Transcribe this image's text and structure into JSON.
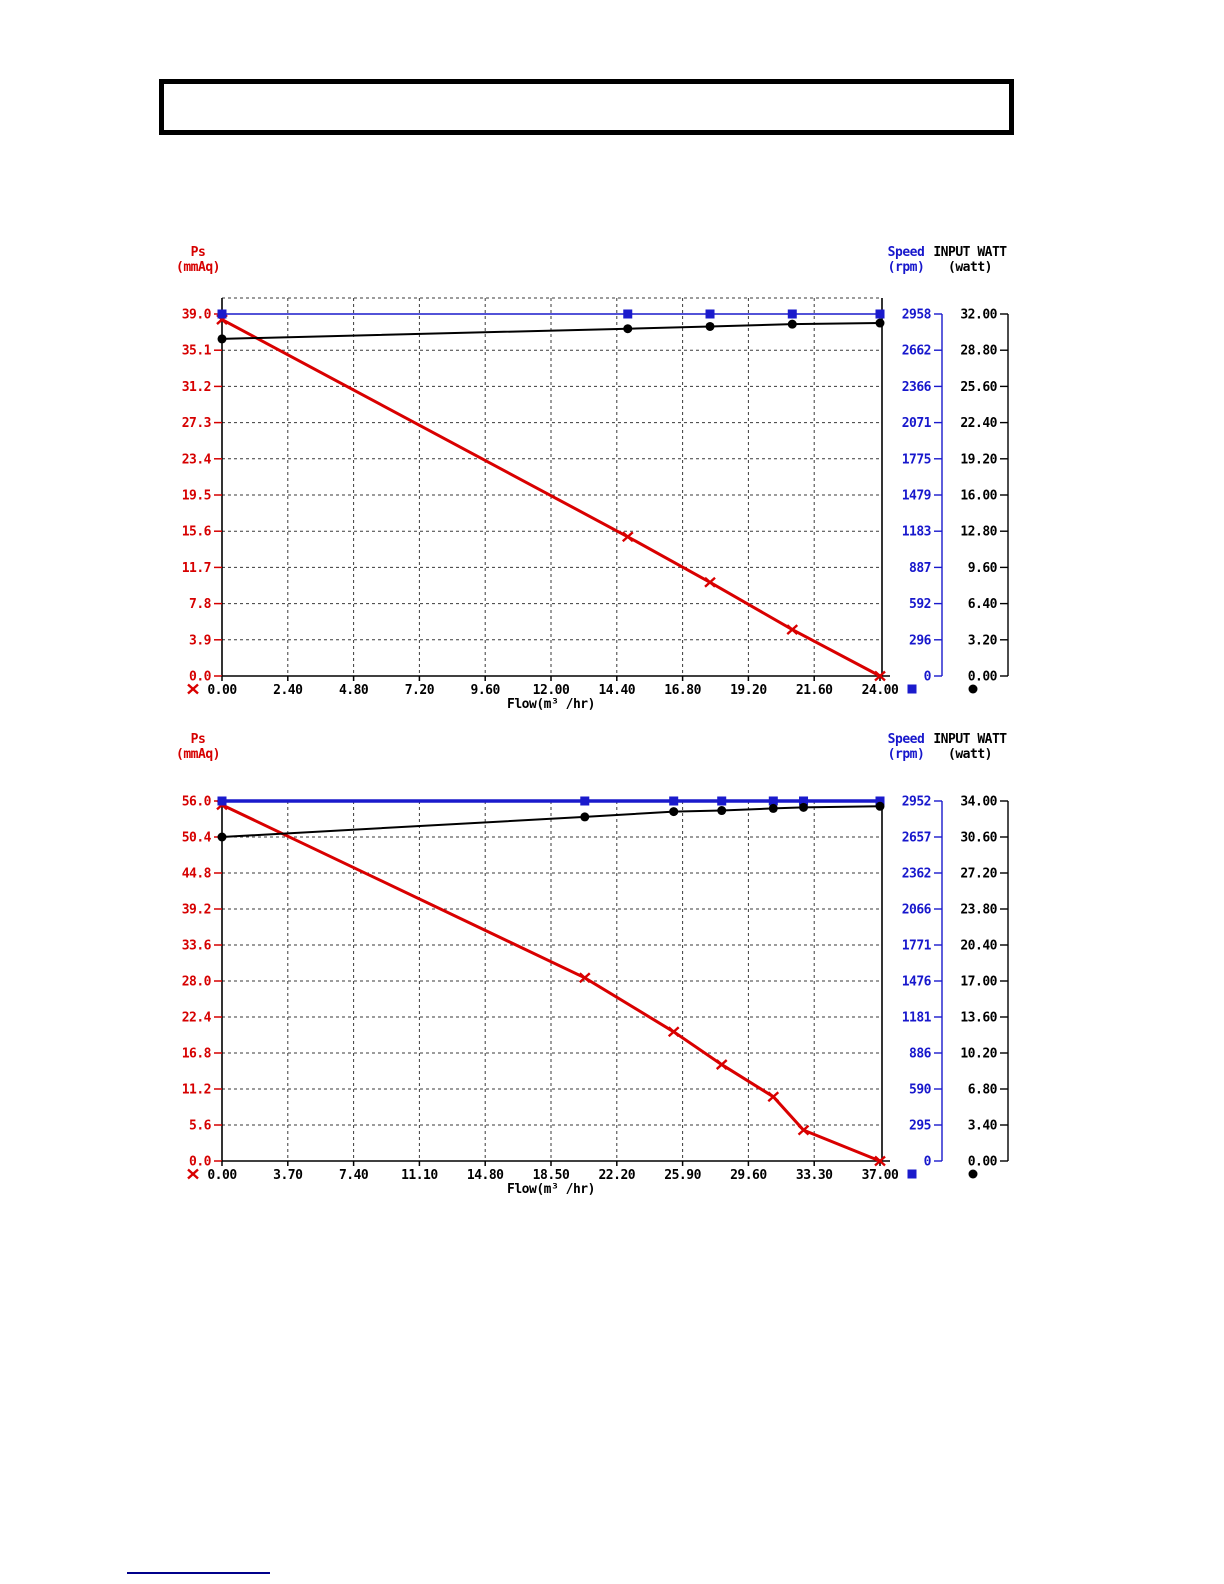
{
  "chart_data": [
    {
      "type": "line",
      "xlabel": "Flow(m³ /hr)",
      "x": {
        "ticks": [
          "0.00",
          "2.40",
          "4.80",
          "7.20",
          "9.60",
          "12.00",
          "14.40",
          "16.80",
          "19.20",
          "21.60",
          "24.00"
        ],
        "max": 24.0
      },
      "y_left": {
        "title_line1": "Ps",
        "title_line2": "(mmAq)",
        "ticks": [
          "39.0",
          "35.1",
          "31.2",
          "27.3",
          "23.4",
          "19.5",
          "15.6",
          "11.7",
          "7.8",
          "3.9",
          "0.0"
        ],
        "max": 39.0
      },
      "y_speed": {
        "title_line1": "Speed",
        "title_line2": "(rpm)",
        "ticks": [
          "2958",
          "2662",
          "2366",
          "2071",
          "1775",
          "1479",
          "1183",
          "887",
          "592",
          "296",
          "0"
        ],
        "max": 2958
      },
      "y_watt": {
        "title_line1": "INPUT WATT",
        "title_line2": "(watt)",
        "ticks": [
          "32.00",
          "28.80",
          "25.60",
          "22.40",
          "19.20",
          "16.00",
          "12.80",
          "9.60",
          "6.40",
          "3.20",
          "0.00"
        ],
        "max": 32.0
      },
      "series": [
        {
          "name": "Ps",
          "axis": "ps",
          "color": "#d90000",
          "marker": "star",
          "line_width": 3,
          "points": [
            [
              0,
              38.4
            ],
            [
              14.8,
              15.0
            ],
            [
              17.8,
              10.1
            ],
            [
              20.8,
              5.0
            ],
            [
              24,
              0.0
            ]
          ]
        },
        {
          "name": "Speed",
          "axis": "speed",
          "color": "#1a1acc",
          "marker": "square",
          "line_width": 1.6,
          "points": [
            [
              0,
              2958
            ],
            [
              14.8,
              2958
            ],
            [
              17.8,
              2958
            ],
            [
              20.8,
              2958
            ],
            [
              24,
              2958
            ]
          ]
        },
        {
          "name": "Input Watt",
          "axis": "watt",
          "color": "#000000",
          "marker": "circle",
          "line_width": 2,
          "points": [
            [
              0,
              29.8
            ],
            [
              14.8,
              30.7
            ],
            [
              17.8,
              30.9
            ],
            [
              20.8,
              31.1
            ],
            [
              24,
              31.2
            ]
          ]
        }
      ],
      "legend": [
        {
          "series": "Ps",
          "marker": "star",
          "color": "#d90000"
        },
        {
          "series": "Speed",
          "marker": "square",
          "color": "#1a1acc"
        },
        {
          "series": "Input Watt",
          "marker": "circle",
          "color": "#000000"
        }
      ]
    },
    {
      "type": "line",
      "xlabel": "Flow(m³ /hr)",
      "x": {
        "ticks": [
          "0.00",
          "3.70",
          "7.40",
          "11.10",
          "14.80",
          "18.50",
          "22.20",
          "25.90",
          "29.60",
          "33.30",
          "37.00"
        ],
        "max": 37.0
      },
      "y_left": {
        "title_line1": "Ps",
        "title_line2": "(mmAq)",
        "ticks": [
          "56.0",
          "50.4",
          "44.8",
          "39.2",
          "33.6",
          "28.0",
          "22.4",
          "16.8",
          "11.2",
          "5.6",
          "0.0"
        ],
        "max": 56.0
      },
      "y_speed": {
        "title_line1": "Speed",
        "title_line2": "(rpm)",
        "ticks": [
          "2952",
          "2657",
          "2362",
          "2066",
          "1771",
          "1476",
          "1181",
          "886",
          "590",
          "295",
          "0"
        ],
        "max": 2952
      },
      "y_watt": {
        "title_line1": "INPUT WATT",
        "title_line2": "(watt)",
        "ticks": [
          "34.00",
          "30.60",
          "27.20",
          "23.80",
          "20.40",
          "17.00",
          "13.60",
          "10.20",
          "6.80",
          "3.40",
          "0.00"
        ],
        "max": 34.0
      },
      "series": [
        {
          "name": "Ps",
          "axis": "ps",
          "color": "#d90000",
          "marker": "star",
          "line_width": 3,
          "points": [
            [
              0,
              55.4
            ],
            [
              20.4,
              28.5
            ],
            [
              25.4,
              20.1
            ],
            [
              28.1,
              15.0
            ],
            [
              31.0,
              10.0
            ],
            [
              32.7,
              4.8
            ],
            [
              37,
              0.0
            ]
          ]
        },
        {
          "name": "Speed",
          "axis": "speed",
          "color": "#1a1acc",
          "marker": "square",
          "line_width": 3.5,
          "points": [
            [
              0,
              2952
            ],
            [
              20.4,
              2952
            ],
            [
              25.4,
              2952
            ],
            [
              28.1,
              2952
            ],
            [
              31.0,
              2952
            ],
            [
              32.7,
              2952
            ],
            [
              37,
              2952
            ]
          ]
        },
        {
          "name": "Input Watt",
          "axis": "watt",
          "color": "#000000",
          "marker": "circle",
          "line_width": 2,
          "points": [
            [
              0,
              30.6
            ],
            [
              20.4,
              32.5
            ],
            [
              25.4,
              33.0
            ],
            [
              28.1,
              33.1
            ],
            [
              31.0,
              33.3
            ],
            [
              32.7,
              33.4
            ],
            [
              37,
              33.5
            ]
          ]
        }
      ],
      "legend": [
        {
          "series": "Ps",
          "marker": "star",
          "color": "#d90000"
        },
        {
          "series": "Speed",
          "marker": "square",
          "color": "#1a1acc"
        },
        {
          "series": "Input Watt",
          "marker": "circle",
          "color": "#000000"
        }
      ]
    }
  ]
}
